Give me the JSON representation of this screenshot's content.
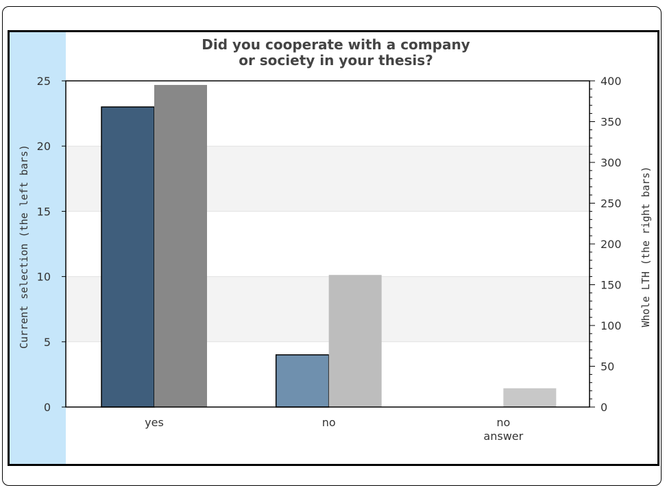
{
  "chart_data": {
    "type": "bar",
    "title": [
      "Did you cooperate with a company",
      "or society in your thesis?"
    ],
    "categories": [
      [
        "yes"
      ],
      [
        "no"
      ],
      [
        "no",
        "answer"
      ]
    ],
    "ylabel_left": "Current selection (the left bars)",
    "ylabel_right": "Whole LTH (the right bars)",
    "ylim_left": [
      0,
      25
    ],
    "ylim_right": [
      0,
      400
    ],
    "yticks_left": [
      "0",
      "5",
      "10",
      "15",
      "20",
      "25"
    ],
    "yticks_right": [
      "0",
      "50",
      "100",
      "150",
      "200",
      "250",
      "300",
      "350",
      "400"
    ],
    "series": [
      {
        "axis": "left",
        "values": [
          23,
          4,
          0
        ],
        "colors": [
          "#3f5e7c",
          "#6f90ae",
          "#a9bfd3"
        ]
      },
      {
        "axis": "right",
        "values": [
          395,
          162,
          23
        ],
        "colors": [
          "#888888",
          "#bdbdbd",
          "#c8c8c8"
        ]
      }
    ],
    "grid_bands": true,
    "colors": {
      "left_panel": "#c6e6fa",
      "band": "#f3f3f3"
    }
  }
}
